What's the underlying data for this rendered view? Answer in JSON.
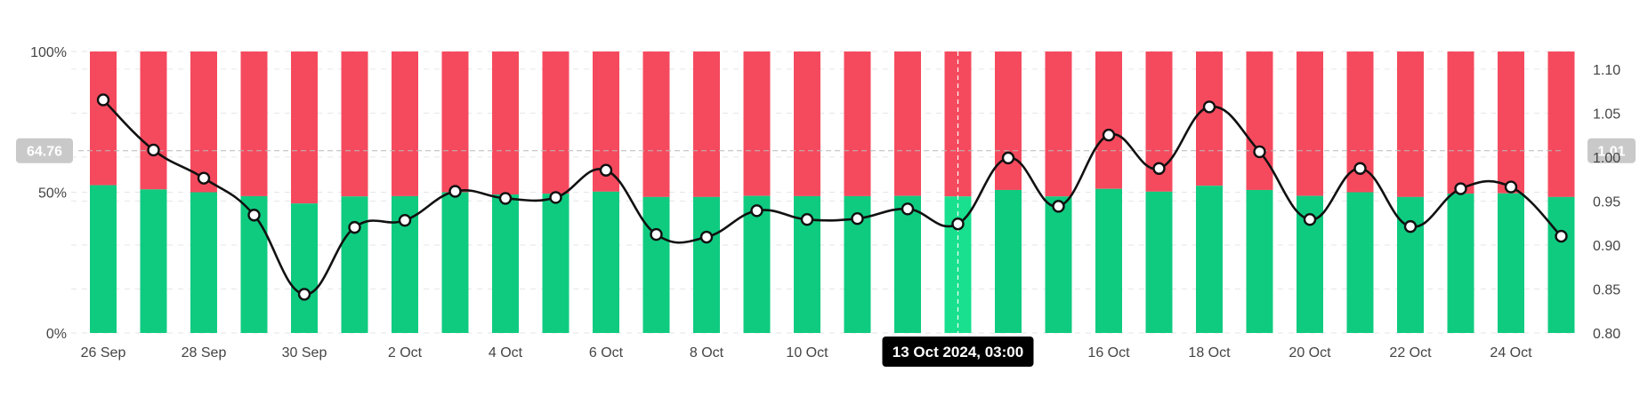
{
  "chart_data": {
    "type": "bar",
    "stacked_percent": true,
    "x_tick_labels": [
      "26 Sep",
      "28 Sep",
      "30 Sep",
      "2 Oct",
      "4 Oct",
      "6 Oct",
      "8 Oct",
      "10 Oct",
      "16 Oct",
      "18 Oct",
      "20 Oct",
      "22 Oct",
      "24 Oct"
    ],
    "categories": [
      "26 Sep",
      "27 Sep",
      "28 Sep",
      "29 Sep",
      "30 Sep",
      "1 Oct",
      "2 Oct",
      "3 Oct",
      "4 Oct",
      "5 Oct",
      "6 Oct",
      "7 Oct",
      "8 Oct",
      "9 Oct",
      "10 Oct",
      "11 Oct",
      "12 Oct",
      "13 Oct",
      "14 Oct",
      "15 Oct",
      "16 Oct",
      "17 Oct",
      "18 Oct",
      "19 Oct",
      "20 Oct",
      "21 Oct",
      "22 Oct",
      "23 Oct",
      "24 Oct",
      "25 Oct"
    ],
    "series": [
      {
        "color": "#0fcb80",
        "axis": "left",
        "values": [
          52.5,
          51,
          50,
          48.6,
          46,
          48.5,
          48.6,
          50,
          49.2,
          49.5,
          50.2,
          48.3,
          48.3,
          48.7,
          48.6,
          48.6,
          48.7,
          48.5,
          50.8,
          48.5,
          51.2,
          50.2,
          52.3,
          50.8,
          48.7,
          50,
          48.3,
          49.5,
          49.6,
          48.3
        ],
        "stack_complement_color": "#f54a5e"
      },
      {
        "type": "line",
        "color": "#111111",
        "axis": "right",
        "values": [
          1.065,
          1.008,
          0.976,
          0.934,
          0.844,
          0.92,
          0.928,
          0.961,
          0.953,
          0.954,
          0.985,
          0.912,
          0.909,
          0.939,
          0.929,
          0.93,
          0.941,
          0.924,
          0.999,
          0.944,
          1.025,
          0.987,
          1.057,
          1.006,
          0.929,
          0.987,
          0.921,
          0.964,
          0.966,
          0.91
        ]
      }
    ],
    "left_axis": {
      "ticks": [
        "0%",
        "50%",
        "100%"
      ],
      "ylim": [
        0,
        100
      ]
    },
    "right_axis": {
      "ticks": [
        "0.80",
        "0.85",
        "0.90",
        "0.95",
        "1.00",
        "1.05",
        "1.10"
      ],
      "ylim": [
        0.8,
        1.12
      ]
    },
    "crosshair": {
      "left_value": 64.76,
      "left_label": "64.76",
      "right_value": 1.01,
      "right_label": "1.01",
      "highlight_index": 17,
      "tooltip": "13 Oct 2024, 03:00"
    },
    "grid": true
  },
  "colors": {
    "long": "#0fcb80",
    "short": "#f54a5e",
    "highlight": "#19e08e",
    "line": "#111111"
  }
}
